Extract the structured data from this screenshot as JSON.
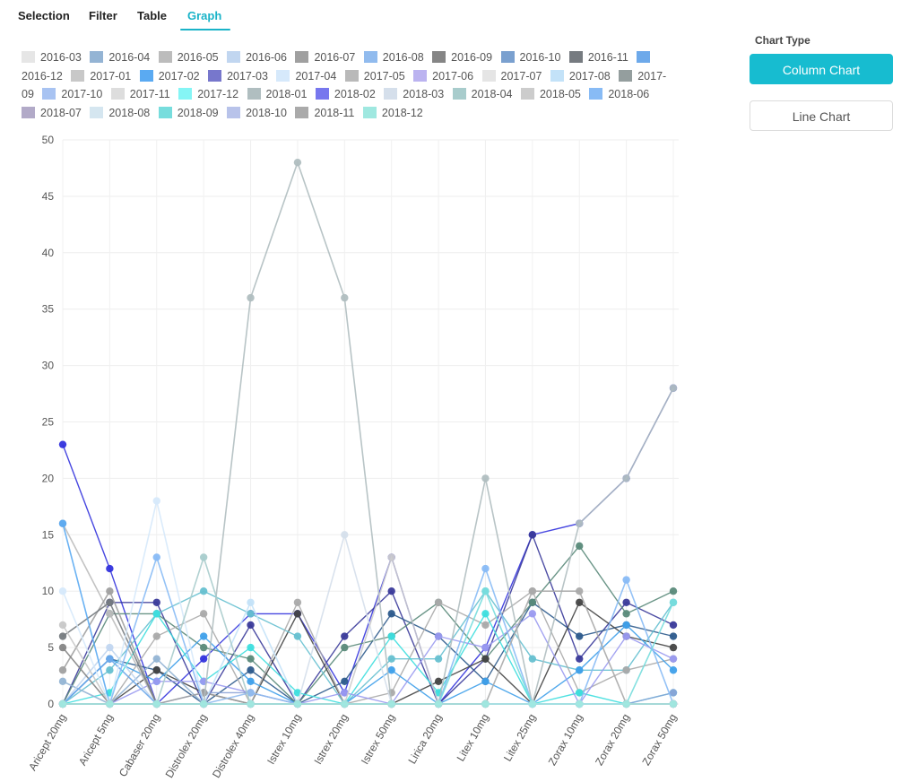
{
  "tabs": [
    {
      "label": "Selection",
      "active": false
    },
    {
      "label": "Filter",
      "active": false
    },
    {
      "label": "Table",
      "active": false
    },
    {
      "label": "Graph",
      "active": true
    }
  ],
  "side": {
    "title": "Chart Type",
    "column_label": "Column Chart",
    "line_label": "Line Chart",
    "accent": "#17bcd0"
  },
  "chart_data": {
    "type": "line",
    "title": "",
    "xlabel": "",
    "ylabel": "",
    "ylim": [
      0,
      50
    ],
    "yticks": [
      0,
      5,
      10,
      15,
      20,
      25,
      30,
      35,
      40,
      45,
      50
    ],
    "grid": true,
    "legend_position": "top",
    "categories": [
      "Aricept 20mg",
      "Aricept 5mg",
      "Cabaser 20mg",
      "Distrolex 20mg",
      "Distrolex 40mg",
      "Istrex 10mg",
      "Istrex 20mg",
      "Istrex 50mg",
      "Lirica 20mg",
      "Litex 10mg",
      "Litex 25mg",
      "Zorax 10mg",
      "Zorax 20mg",
      "Zorax 50mg"
    ],
    "series": [
      {
        "name": "2016-03",
        "color": "#e6e6e6",
        "values": [
          0,
          0,
          0,
          0,
          0,
          0,
          0,
          0,
          0,
          0,
          0,
          0,
          0,
          0
        ]
      },
      {
        "name": "2016-04",
        "color": "#94b4d4",
        "values": [
          2,
          0,
          4,
          0,
          0,
          0,
          0,
          0,
          0,
          0,
          0,
          0,
          0,
          0
        ]
      },
      {
        "name": "2016-05",
        "color": "#bcbcbc",
        "values": [
          16,
          8,
          0,
          0,
          0,
          0,
          0,
          0,
          0,
          0,
          0,
          0,
          0,
          0
        ]
      },
      {
        "name": "2016-06",
        "color": "#c1d6f0",
        "values": [
          0,
          5,
          0,
          0,
          0,
          0,
          0,
          0,
          0,
          0,
          0,
          0,
          0,
          0
        ]
      },
      {
        "name": "2016-07",
        "color": "#a0a0a0",
        "values": [
          3,
          10,
          0,
          1,
          0,
          0,
          0,
          0,
          0,
          0,
          0,
          0,
          0,
          0
        ]
      },
      {
        "name": "2016-08",
        "color": "#91bbee",
        "values": [
          0,
          0,
          0,
          0,
          1,
          0,
          0,
          0,
          0,
          0,
          0,
          0,
          0,
          0
        ]
      },
      {
        "name": "2016-09",
        "color": "#858585",
        "values": [
          5,
          0,
          0,
          0,
          0,
          0,
          0,
          0,
          0,
          0,
          0,
          0,
          0,
          0
        ]
      },
      {
        "name": "2016-10",
        "color": "#7aa0cf",
        "values": [
          0,
          0,
          0,
          0,
          0,
          0,
          0,
          0,
          0,
          0,
          0,
          0,
          0,
          0
        ]
      },
      {
        "name": "2016-11",
        "color": "#767b80",
        "values": [
          6,
          9,
          0,
          0,
          0,
          0,
          0,
          0,
          0,
          0,
          0,
          0,
          0,
          0
        ]
      },
      {
        "name": "2016-12",
        "color": "#6da9ea",
        "values": [
          0,
          4,
          0,
          0,
          0,
          0,
          0,
          0,
          0,
          0,
          0,
          0,
          0,
          0
        ]
      },
      {
        "name": "2017-01",
        "color": "#c8c8c8",
        "values": [
          7,
          0,
          0,
          0,
          0,
          0,
          0,
          0,
          0,
          0,
          0,
          0,
          0,
          0
        ]
      },
      {
        "name": "2017-02",
        "color": "#5aaaf2",
        "values": [
          16,
          0,
          0,
          0,
          0,
          0,
          0,
          0,
          0,
          0,
          0,
          0,
          0,
          0
        ]
      },
      {
        "name": "2017-03",
        "color": "#7777cc",
        "values": [
          0,
          0,
          0,
          0,
          0,
          0,
          0,
          0,
          0,
          0,
          0,
          0,
          0,
          0
        ]
      },
      {
        "name": "2017-04",
        "color": "#d6e9fb",
        "values": [
          10,
          0,
          18,
          0,
          0,
          0,
          0,
          0,
          0,
          0,
          0,
          0,
          0,
          0
        ]
      },
      {
        "name": "2017-05",
        "color": "#b9b9b9",
        "values": [
          0,
          0,
          0,
          0,
          0,
          0,
          0,
          0,
          0,
          0,
          0,
          0,
          0,
          0
        ]
      },
      {
        "name": "2017-06",
        "color": "#bbb3f0",
        "values": [
          0,
          0,
          0,
          0,
          0,
          0,
          0,
          0,
          0,
          0,
          0,
          0,
          0,
          0
        ]
      },
      {
        "name": "2017-07",
        "color": "#e5e5e5",
        "values": [
          0,
          0,
          0,
          0,
          0,
          0,
          0,
          0,
          0,
          0,
          0,
          0,
          0,
          0
        ]
      },
      {
        "name": "2017-08",
        "color": "#c3e2f8",
        "values": [
          0,
          0,
          0,
          0,
          9,
          0,
          0,
          0,
          0,
          0,
          0,
          0,
          0,
          0
        ]
      },
      {
        "name": "2017-09",
        "color": "#949e9e",
        "values": [
          0,
          0,
          0,
          0,
          0,
          0,
          0,
          0,
          0,
          0,
          0,
          0,
          0,
          0
        ]
      },
      {
        "name": "2017-10",
        "color": "#a8c3f2",
        "values": [
          0,
          0,
          0,
          0,
          0,
          0,
          0,
          0,
          0,
          0,
          0,
          0,
          0,
          0
        ]
      },
      {
        "name": "2017-11",
        "color": "#dddddd",
        "values": [
          0,
          0,
          0,
          0,
          0,
          0,
          0,
          0,
          0,
          0,
          0,
          0,
          0,
          0
        ]
      },
      {
        "name": "2017-12",
        "color": "#85f5f5",
        "values": [
          0,
          0,
          0,
          0,
          0,
          0,
          0,
          0,
          0,
          0,
          0,
          0,
          0,
          0
        ]
      },
      {
        "name": "2018-01",
        "color": "#b0bec0",
        "values": [
          0,
          0,
          0,
          0,
          36,
          48,
          36,
          0,
          0,
          20,
          0,
          16,
          20,
          28
        ]
      },
      {
        "name": "2018-02",
        "color": "#7777ee",
        "values": [
          0,
          0,
          0,
          0,
          0,
          0,
          0,
          0,
          0,
          0,
          0,
          0,
          0,
          0
        ]
      },
      {
        "name": "2018-03",
        "color": "#d5dfeb",
        "values": [
          0,
          0,
          0,
          0,
          0,
          0,
          15,
          0,
          0,
          0,
          0,
          0,
          0,
          0
        ]
      },
      {
        "name": "2018-04",
        "color": "#a8cccc",
        "values": [
          0,
          0,
          0,
          13,
          0,
          0,
          0,
          0,
          0,
          0,
          0,
          0,
          0,
          0
        ]
      },
      {
        "name": "2018-05",
        "color": "#cccccc",
        "values": [
          0,
          0,
          0,
          0,
          0,
          0,
          0,
          13,
          0,
          0,
          0,
          0,
          0,
          0
        ]
      },
      {
        "name": "2018-06",
        "color": "#88bbf5",
        "values": [
          0,
          0,
          13,
          0,
          0,
          0,
          0,
          0,
          0,
          12,
          0,
          0,
          11,
          0
        ]
      },
      {
        "name": "2018-07",
        "color": "#b2aac8",
        "values": [
          0,
          0,
          0,
          0,
          0,
          0,
          0,
          0,
          0,
          0,
          0,
          0,
          0,
          0
        ]
      },
      {
        "name": "2018-08",
        "color": "#d5e6f0",
        "values": [
          0,
          0,
          0,
          0,
          0,
          0,
          0,
          0,
          0,
          0,
          0,
          0,
          0,
          0
        ]
      },
      {
        "name": "2018-09",
        "color": "#77dddd",
        "values": [
          0,
          0,
          0,
          0,
          0,
          0,
          0,
          0,
          0,
          10,
          0,
          0,
          0,
          9
        ]
      },
      {
        "name": "2018-10",
        "color": "#b8c3ea",
        "values": [
          0,
          0,
          0,
          0,
          0,
          0,
          0,
          0,
          0,
          0,
          0,
          0,
          0,
          0
        ]
      },
      {
        "name": "2018-11",
        "color": "#aaaaaa",
        "values": [
          0,
          0,
          0,
          0,
          0,
          0,
          0,
          0,
          0,
          0,
          10,
          10,
          0,
          0
        ]
      },
      {
        "name": "2018-12",
        "color": "#9fe8e0",
        "values": [
          0,
          0,
          0,
          0,
          0,
          0,
          0,
          0,
          0,
          0,
          0,
          0,
          0,
          0
        ]
      }
    ],
    "extra_marks": [
      {
        "color": "#3333dd",
        "values": [
          23,
          12,
          0,
          4,
          8,
          8,
          1,
          13,
          0,
          5,
          15,
          16,
          20,
          28
        ]
      },
      {
        "color": "#3a3a9a",
        "values": [
          0,
          9,
          9,
          0,
          7,
          0,
          6,
          10,
          0,
          4,
          15,
          4,
          9,
          7
        ]
      },
      {
        "color": "#2c5a8c",
        "values": [
          0,
          4,
          3,
          0,
          3,
          0,
          2,
          8,
          6,
          2,
          9,
          6,
          7,
          6
        ]
      },
      {
        "color": "#5a8a7a",
        "values": [
          0,
          8,
          8,
          5,
          4,
          0,
          5,
          6,
          9,
          4,
          9,
          14,
          8,
          10
        ]
      },
      {
        "color": "#444444",
        "values": [
          0,
          0,
          3,
          1,
          0,
          8,
          0,
          0,
          2,
          4,
          0,
          9,
          6,
          5
        ]
      },
      {
        "color": "#66c0d0",
        "values": [
          0,
          3,
          8,
          10,
          8,
          6,
          0,
          4,
          4,
          10,
          4,
          3,
          3,
          9
        ]
      },
      {
        "color": "#aaaaaa",
        "values": [
          0,
          0,
          6,
          8,
          0,
          9,
          0,
          1,
          9,
          7,
          10,
          1,
          3,
          4
        ]
      },
      {
        "color": "#3fa0ea",
        "values": [
          0,
          4,
          2,
          6,
          2,
          0,
          0,
          3,
          0,
          2,
          0,
          3,
          7,
          3
        ]
      },
      {
        "color": "#3ddede",
        "values": [
          0,
          1,
          8,
          2,
          5,
          1,
          0,
          6,
          1,
          8,
          0,
          1,
          0,
          1
        ]
      },
      {
        "color": "#9a9af0",
        "values": [
          0,
          0,
          2,
          2,
          1,
          0,
          1,
          0,
          6,
          5,
          8,
          0,
          6,
          4
        ]
      },
      {
        "color": "#8aa2d6",
        "values": [
          0,
          0,
          0,
          1,
          1,
          0,
          0,
          0,
          0,
          0,
          0,
          0,
          0,
          1
        ]
      }
    ]
  }
}
